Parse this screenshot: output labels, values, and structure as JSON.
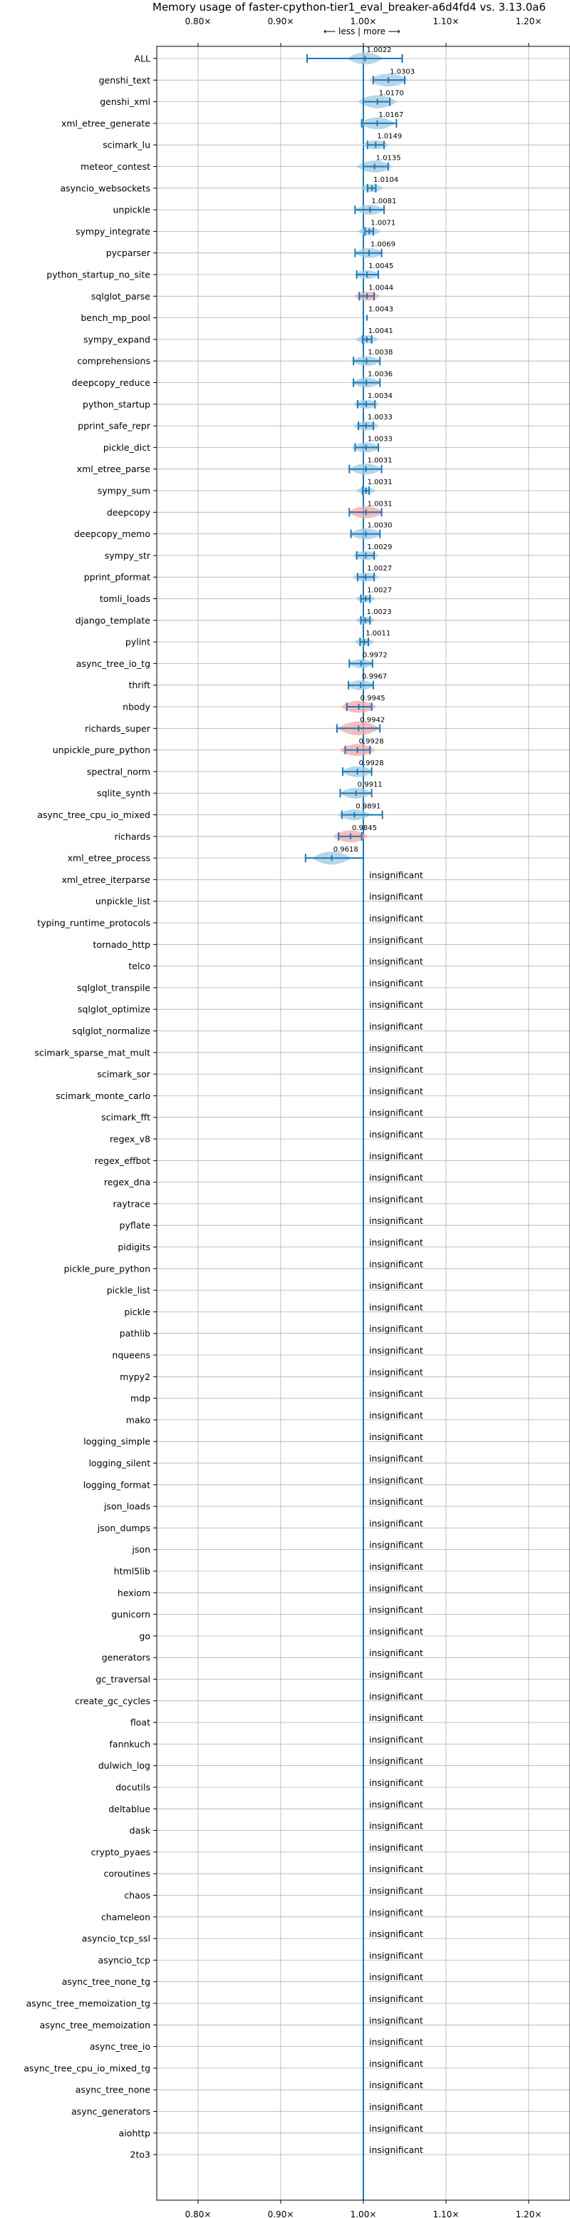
{
  "chart_data": {
    "type": "scatter",
    "title": "Memory usage of faster-cpython-tier1_eval_breaker-a6d4fd4 vs. 3.13.0a6",
    "direction_label": "⟵ less | more ⟶",
    "xlim": [
      0.75,
      1.25
    ],
    "xticks": [
      {
        "value": 0.8,
        "label": "0.80×"
      },
      {
        "value": 0.9,
        "label": "0.90×"
      },
      {
        "value": 1.0,
        "label": "1.00×"
      },
      {
        "value": 1.1,
        "label": "1.10×"
      },
      {
        "value": 1.2,
        "label": "1.20×"
      }
    ],
    "insignificant_label": "insignificant",
    "colors": {
      "accent": "#1f77b4",
      "violin_improve": "#9ecae1",
      "violin_regress": "#f4a6a6",
      "grid": "#b0b0b0"
    },
    "benchmarks": [
      {
        "name": "ALL",
        "mean": 1.0022,
        "err": [
          0.932,
          1.047
        ],
        "color": "blue",
        "width": 0.8
      },
      {
        "name": "genshi_text",
        "mean": 1.0303,
        "err": [
          1.012,
          1.05
        ],
        "color": "blue",
        "width": 0.9
      },
      {
        "name": "genshi_xml",
        "mean": 1.017,
        "err": [
          1.0,
          1.032
        ],
        "color": "blue",
        "width": 0.9
      },
      {
        "name": "xml_etree_generate",
        "mean": 1.0167,
        "err": [
          0.998,
          1.04
        ],
        "color": "blue",
        "width": 0.8
      },
      {
        "name": "scimark_lu",
        "mean": 1.0149,
        "err": [
          1.005,
          1.025
        ],
        "color": "blue",
        "width": 0.5
      },
      {
        "name": "meteor_contest",
        "mean": 1.0135,
        "err": [
          1.0,
          1.03
        ],
        "color": "blue",
        "width": 0.8
      },
      {
        "name": "asyncio_websockets",
        "mean": 1.0104,
        "err": [
          1.005,
          1.015
        ],
        "color": "blue",
        "width": 0.4
      },
      {
        "name": "unpickle",
        "mean": 1.0081,
        "err": [
          0.99,
          1.025
        ],
        "color": "blue",
        "width": 0.6
      },
      {
        "name": "sympy_integrate",
        "mean": 1.0071,
        "err": [
          1.002,
          1.012
        ],
        "color": "blue",
        "width": 0.4
      },
      {
        "name": "pycparser",
        "mean": 1.0069,
        "err": [
          0.99,
          1.022
        ],
        "color": "blue",
        "width": 0.6
      },
      {
        "name": "python_startup_no_site",
        "mean": 1.0045,
        "err": [
          0.992,
          1.018
        ],
        "color": "blue",
        "width": 0.5
      },
      {
        "name": "sqlglot_parse",
        "mean": 1.0044,
        "err": [
          0.995,
          1.013
        ],
        "color": "red",
        "width": 0.5
      },
      {
        "name": "bench_mp_pool",
        "mean": 1.0043,
        "err": null,
        "color": "blue",
        "width": 0
      },
      {
        "name": "sympy_expand",
        "mean": 1.0041,
        "err": [
          0.999,
          1.01
        ],
        "color": "blue",
        "width": 0.4
      },
      {
        "name": "comprehensions",
        "mean": 1.0038,
        "err": [
          0.988,
          1.02
        ],
        "color": "blue",
        "width": 0.6
      },
      {
        "name": "deepcopy_reduce",
        "mean": 1.0036,
        "err": [
          0.988,
          1.02
        ],
        "color": "blue",
        "width": 0.6
      },
      {
        "name": "python_startup",
        "mean": 1.0034,
        "err": [
          0.993,
          1.014
        ],
        "color": "blue",
        "width": 0.5
      },
      {
        "name": "pprint_safe_repr",
        "mean": 1.0033,
        "err": [
          0.994,
          1.012
        ],
        "color": "blue",
        "width": 0.5
      },
      {
        "name": "pickle_dict",
        "mean": 1.0033,
        "err": [
          0.99,
          1.018
        ],
        "color": "blue",
        "width": 0.6
      },
      {
        "name": "xml_etree_parse",
        "mean": 1.0031,
        "err": [
          0.983,
          1.022
        ],
        "color": "blue",
        "width": 0.7
      },
      {
        "name": "sympy_sum",
        "mean": 1.0031,
        "err": [
          0.999,
          1.007
        ],
        "color": "blue",
        "width": 0.3
      },
      {
        "name": "deepcopy",
        "mean": 1.0031,
        "err": [
          0.983,
          1.022
        ],
        "color": "red",
        "width": 0.8
      },
      {
        "name": "deepcopy_memo",
        "mean": 1.003,
        "err": [
          0.985,
          1.02
        ],
        "color": "blue",
        "width": 0.7
      },
      {
        "name": "sympy_str",
        "mean": 1.0029,
        "err": [
          0.992,
          1.013
        ],
        "color": "blue",
        "width": 0.5
      },
      {
        "name": "pprint_pformat",
        "mean": 1.0027,
        "err": [
          0.993,
          1.013
        ],
        "color": "blue",
        "width": 0.5
      },
      {
        "name": "tomli_loads",
        "mean": 1.0027,
        "err": [
          0.997,
          1.008
        ],
        "color": "blue",
        "width": 0.3
      },
      {
        "name": "django_template",
        "mean": 1.0023,
        "err": [
          0.997,
          1.008
        ],
        "color": "blue",
        "width": 0.3
      },
      {
        "name": "pylint",
        "mean": 1.0011,
        "err": [
          0.996,
          1.006
        ],
        "color": "blue",
        "width": 0.3
      },
      {
        "name": "async_tree_io_tg",
        "mean": 0.9972,
        "err": [
          0.983,
          1.011
        ],
        "color": "blue",
        "width": 0.5
      },
      {
        "name": "thrift",
        "mean": 0.9967,
        "err": [
          0.982,
          1.012
        ],
        "color": "blue",
        "width": 0.6
      },
      {
        "name": "nbody",
        "mean": 0.9945,
        "err": [
          0.98,
          1.01
        ],
        "color": "red",
        "width": 0.8
      },
      {
        "name": "richards_super",
        "mean": 0.9942,
        "err": [
          0.968,
          1.02
        ],
        "color": "red",
        "width": 1.0
      },
      {
        "name": "unpickle_pure_python",
        "mean": 0.9928,
        "err": [
          0.978,
          1.008
        ],
        "color": "red",
        "width": 0.8
      },
      {
        "name": "spectral_norm",
        "mean": 0.9928,
        "err": [
          0.975,
          1.01
        ],
        "color": "blue",
        "width": 0.7
      },
      {
        "name": "sqlite_synth",
        "mean": 0.9911,
        "err": [
          0.972,
          1.01
        ],
        "color": "blue",
        "width": 0.7
      },
      {
        "name": "async_tree_cpu_io_mixed",
        "mean": 0.9891,
        "err": [
          0.974,
          1.023
        ],
        "color": "blue",
        "width": 0.7
      },
      {
        "name": "richards",
        "mean": 0.9845,
        "err": [
          0.97,
          0.998
        ],
        "color": "red",
        "width": 0.8
      },
      {
        "name": "xml_etree_process",
        "mean": 0.9618,
        "err": [
          0.93,
          1.0
        ],
        "color": "blue",
        "width": 0.9
      }
    ],
    "insignificant": [
      "xml_etree_iterparse",
      "unpickle_list",
      "typing_runtime_protocols",
      "tornado_http",
      "telco",
      "sqlglot_transpile",
      "sqlglot_optimize",
      "sqlglot_normalize",
      "scimark_sparse_mat_mult",
      "scimark_sor",
      "scimark_monte_carlo",
      "scimark_fft",
      "regex_v8",
      "regex_effbot",
      "regex_dna",
      "raytrace",
      "pyflate",
      "pidigits",
      "pickle_pure_python",
      "pickle_list",
      "pickle",
      "pathlib",
      "nqueens",
      "mypy2",
      "mdp",
      "mako",
      "logging_simple",
      "logging_silent",
      "logging_format",
      "json_loads",
      "json_dumps",
      "json",
      "html5lib",
      "hexiom",
      "gunicorn",
      "go",
      "generators",
      "gc_traversal",
      "create_gc_cycles",
      "float",
      "fannkuch",
      "dulwich_log",
      "docutils",
      "deltablue",
      "dask",
      "crypto_pyaes",
      "coroutines",
      "chaos",
      "chameleon",
      "asyncio_tcp_ssl",
      "asyncio_tcp",
      "async_tree_none_tg",
      "async_tree_memoization_tg",
      "async_tree_memoization",
      "async_tree_io",
      "async_tree_cpu_io_mixed_tg",
      "async_tree_none",
      "async_generators",
      "aiohttp",
      "2to3"
    ]
  }
}
